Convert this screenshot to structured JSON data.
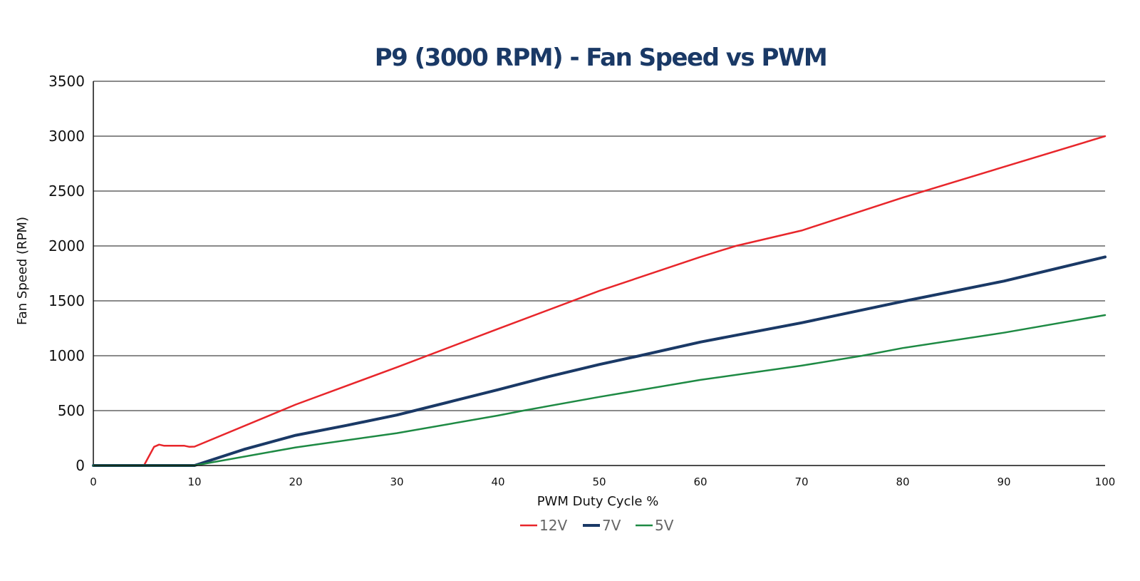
{
  "chart_data": {
    "type": "line",
    "title": "P9 (3000 RPM) - Fan Speed vs PWM",
    "xlabel": "PWM Duty Cycle %",
    "ylabel": "Fan Speed (RPM)",
    "xlim": [
      0,
      100
    ],
    "ylim": [
      0,
      3500
    ],
    "x_ticks": [
      "0",
      "10",
      "20",
      "30",
      "40",
      "50",
      "60",
      "70",
      "80",
      "90",
      "100"
    ],
    "y_ticks": [
      "0",
      "500",
      "1000",
      "1500",
      "2000",
      "2500",
      "3000",
      "3500"
    ],
    "grid": true,
    "legend_position": "bottom",
    "series": [
      {
        "name": "12V",
        "color": "#e8262b",
        "x": [
          0,
          5,
          6,
          6.5,
          7,
          9,
          9.5,
          10,
          20,
          30,
          40,
          50,
          60,
          63.5,
          70,
          80,
          90,
          100
        ],
        "y": [
          0,
          0,
          170,
          190,
          180,
          180,
          170,
          172,
          555,
          895,
          1245,
          1590,
          1900,
          2000,
          2140,
          2440,
          2720,
          3000
        ]
      },
      {
        "name": "7V",
        "color": "#1a3966",
        "x": [
          0,
          10,
          15,
          20,
          25,
          30,
          35,
          40,
          45,
          50,
          54,
          60,
          70,
          80,
          90,
          100
        ],
        "y": [
          0,
          0,
          150,
          275,
          365,
          460,
          575,
          690,
          810,
          920,
          1000,
          1125,
          1300,
          1495,
          1680,
          1900
        ]
      },
      {
        "name": "5V",
        "color": "#1e8a44",
        "x": [
          0,
          10,
          20,
          30,
          40,
          42.5,
          50,
          60,
          70,
          76,
          80,
          90,
          100
        ],
        "y": [
          0,
          0,
          165,
          295,
          455,
          500,
          625,
          780,
          910,
          1000,
          1070,
          1210,
          1370
        ]
      }
    ]
  }
}
